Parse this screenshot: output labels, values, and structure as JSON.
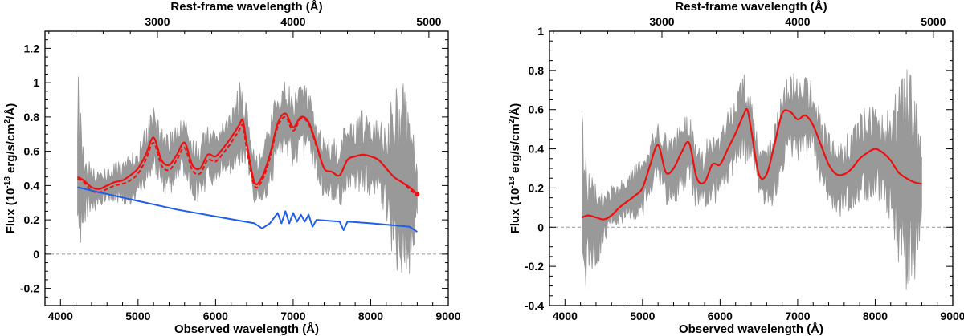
{
  "chart_data": [
    {
      "type": "line",
      "panel": "left",
      "xlabel": "Observed wavelength (Å)",
      "top_xlabel": "Rest-frame wavelength (Å)",
      "ylabel_parts": [
        "Flux (10",
        "-18",
        " erg/s/cm",
        "2",
        "/Å)"
      ],
      "xlim": [
        3800,
        9000
      ],
      "ylim": [
        -0.3,
        1.3
      ],
      "x_ticks": [
        4000,
        5000,
        6000,
        7000,
        8000,
        9000
      ],
      "x_tick_labels": [
        "4000",
        "5000",
        "6000",
        "7000",
        "8000",
        "9000"
      ],
      "y_ticks": [
        -0.2,
        0,
        0.2,
        0.4,
        0.6,
        0.8,
        1,
        1.2
      ],
      "y_tick_labels": [
        "-0.2",
        "0",
        "0.2",
        "0.4",
        "0.6",
        "0.8",
        "1",
        "1.2"
      ],
      "top_ticks": [
        3000,
        4000,
        5000
      ],
      "top_tick_labels": [
        "3000",
        "4000",
        "5000"
      ],
      "rest_frame_factor": 1.75,
      "zero_line": true,
      "series": [
        {
          "name": "observed-spectrum",
          "style": "noise-band",
          "color": "#999999",
          "x": [
            4220,
            4300,
            4400,
            4500,
            4600,
            4700,
            4800,
            4900,
            5000,
            5100,
            5200,
            5300,
            5400,
            5500,
            5600,
            5700,
            5800,
            5900,
            6000,
            6100,
            6200,
            6300,
            6400,
            6500,
            6600,
            6700,
            6800,
            6900,
            7000,
            7100,
            7200,
            7300,
            7400,
            7500,
            7600,
            7700,
            7800,
            7900,
            8000,
            8100,
            8200,
            8300,
            8400,
            8500,
            8600
          ],
          "y": [
            0.44,
            0.4,
            0.37,
            0.38,
            0.4,
            0.42,
            0.43,
            0.44,
            0.47,
            0.56,
            0.68,
            0.55,
            0.52,
            0.58,
            0.64,
            0.5,
            0.48,
            0.58,
            0.58,
            0.6,
            0.66,
            0.75,
            0.72,
            0.43,
            0.44,
            0.58,
            0.75,
            0.8,
            0.72,
            0.78,
            0.78,
            0.62,
            0.5,
            0.48,
            0.47,
            0.55,
            0.58,
            0.58,
            0.56,
            0.54,
            0.5,
            0.45,
            0.42,
            0.38,
            0.36
          ],
          "noise": [
            0.9,
            0.3,
            0.2,
            0.15,
            0.15,
            0.15,
            0.2,
            0.2,
            0.2,
            0.25,
            0.25,
            0.25,
            0.25,
            0.25,
            0.25,
            0.25,
            0.25,
            0.25,
            0.25,
            0.25,
            0.25,
            0.35,
            0.25,
            0.2,
            0.2,
            0.3,
            0.3,
            0.3,
            0.3,
            0.3,
            0.25,
            0.25,
            0.25,
            0.25,
            0.3,
            0.3,
            0.3,
            0.35,
            0.3,
            0.35,
            0.4,
            0.7,
            0.8,
            0.7,
            0.3
          ]
        },
        {
          "name": "total-model",
          "style": "solid",
          "color": "#ee1111",
          "x": [
            4220,
            4300,
            4400,
            4500,
            4600,
            4700,
            4800,
            4900,
            5000,
            5100,
            5200,
            5300,
            5400,
            5500,
            5600,
            5700,
            5800,
            5900,
            6000,
            6100,
            6200,
            6300,
            6350,
            6400,
            6500,
            6600,
            6700,
            6800,
            6900,
            7000,
            7100,
            7200,
            7300,
            7400,
            7500,
            7600,
            7700,
            7800,
            7900,
            8000,
            8100,
            8200,
            8300,
            8400,
            8500,
            8600
          ],
          "y": [
            0.45,
            0.43,
            0.39,
            0.38,
            0.4,
            0.42,
            0.43,
            0.46,
            0.5,
            0.58,
            0.68,
            0.55,
            0.52,
            0.58,
            0.65,
            0.52,
            0.5,
            0.58,
            0.57,
            0.62,
            0.68,
            0.75,
            0.78,
            0.65,
            0.42,
            0.45,
            0.58,
            0.76,
            0.82,
            0.74,
            0.8,
            0.77,
            0.64,
            0.5,
            0.48,
            0.46,
            0.55,
            0.57,
            0.58,
            0.57,
            0.55,
            0.5,
            0.45,
            0.42,
            0.39,
            0.35
          ]
        },
        {
          "name": "galaxy-model",
          "style": "dashed",
          "color": "#ee1111",
          "x": [
            4220,
            4300,
            4400,
            4500,
            4600,
            4700,
            4800,
            4900,
            5000,
            5100,
            5200,
            5300,
            5400,
            5500,
            5600,
            5700,
            5800,
            5900,
            6000,
            6100,
            6200,
            6300,
            6350,
            6400,
            6500,
            6600,
            6700,
            6800,
            6900,
            7000,
            7100,
            7200,
            7300,
            7400,
            7500,
            7600,
            7700,
            7800,
            7900,
            8000,
            8100,
            8200,
            8300,
            8400,
            8500,
            8600
          ],
          "y": [
            0.44,
            0.42,
            0.37,
            0.36,
            0.38,
            0.4,
            0.41,
            0.43,
            0.47,
            0.55,
            0.65,
            0.52,
            0.49,
            0.55,
            0.62,
            0.49,
            0.47,
            0.55,
            0.54,
            0.59,
            0.65,
            0.72,
            0.75,
            0.62,
            0.4,
            0.43,
            0.56,
            0.74,
            0.8,
            0.72,
            0.79,
            0.76,
            0.63,
            0.5,
            0.48,
            0.46,
            0.55,
            0.57,
            0.58,
            0.57,
            0.55,
            0.5,
            0.45,
            0.42,
            0.38,
            0.34
          ]
        },
        {
          "name": "stellar-continuum",
          "style": "solid",
          "color": "#1e5ee8",
          "x": [
            4220,
            4500,
            5000,
            5500,
            6000,
            6500,
            6600,
            6700,
            6800,
            6850,
            6900,
            6950,
            7000,
            7050,
            7100,
            7150,
            7200,
            7250,
            7300,
            7600,
            7650,
            7700,
            8000,
            8500,
            8600
          ],
          "y": [
            0.39,
            0.36,
            0.31,
            0.26,
            0.22,
            0.18,
            0.15,
            0.18,
            0.24,
            0.18,
            0.25,
            0.18,
            0.24,
            0.19,
            0.23,
            0.19,
            0.23,
            0.16,
            0.2,
            0.19,
            0.14,
            0.19,
            0.18,
            0.16,
            0.13
          ]
        }
      ]
    },
    {
      "type": "line",
      "panel": "right",
      "xlabel": "Observed wavelength (Å)",
      "top_xlabel": "Rest-frame wavelength (Å)",
      "ylabel_parts": [
        "Flux (10",
        "-18",
        " erg/s/cm",
        "2",
        "/Å)"
      ],
      "xlim": [
        3800,
        9000
      ],
      "ylim": [
        -0.4,
        1.0
      ],
      "x_ticks": [
        4000,
        5000,
        6000,
        7000,
        8000,
        9000
      ],
      "x_tick_labels": [
        "4000",
        "5000",
        "6000",
        "7000",
        "8000",
        "9000"
      ],
      "y_ticks": [
        -0.4,
        -0.2,
        0,
        0.2,
        0.4,
        0.6,
        0.8,
        1
      ],
      "y_tick_labels": [
        "-0.4",
        "-0.2",
        "0",
        "0.2",
        "0.4",
        "0.6",
        "0.8",
        "1"
      ],
      "top_ticks": [
        3000,
        4000,
        5000
      ],
      "top_tick_labels": [
        "3000",
        "4000",
        "5000"
      ],
      "rest_frame_factor": 1.75,
      "zero_line": true,
      "series": [
        {
          "name": "residual-spectrum",
          "style": "noise-band",
          "color": "#999999",
          "x": [
            4220,
            4300,
            4400,
            4500,
            4600,
            4700,
            4800,
            4900,
            5000,
            5100,
            5200,
            5300,
            5400,
            5500,
            5600,
            5700,
            5800,
            5900,
            6000,
            6100,
            6200,
            6300,
            6400,
            6500,
            6600,
            6700,
            6800,
            6900,
            7000,
            7100,
            7200,
            7300,
            7400,
            7500,
            7600,
            7700,
            7800,
            7900,
            8000,
            8100,
            8200,
            8300,
            8400,
            8500,
            8600
          ],
          "y": [
            0.05,
            0.02,
            0.0,
            0.05,
            0.1,
            0.12,
            0.15,
            0.18,
            0.2,
            0.3,
            0.4,
            0.3,
            0.3,
            0.35,
            0.4,
            0.25,
            0.25,
            0.3,
            0.32,
            0.4,
            0.48,
            0.58,
            0.5,
            0.3,
            0.25,
            0.3,
            0.5,
            0.58,
            0.55,
            0.55,
            0.55,
            0.4,
            0.3,
            0.25,
            0.25,
            0.28,
            0.35,
            0.38,
            0.38,
            0.35,
            0.3,
            0.25,
            0.25,
            0.22,
            0.22
          ],
          "noise": [
            0.8,
            0.35,
            0.3,
            0.2,
            0.15,
            0.15,
            0.15,
            0.2,
            0.2,
            0.2,
            0.2,
            0.25,
            0.25,
            0.25,
            0.25,
            0.25,
            0.25,
            0.25,
            0.25,
            0.25,
            0.25,
            0.35,
            0.25,
            0.2,
            0.2,
            0.3,
            0.3,
            0.3,
            0.3,
            0.3,
            0.25,
            0.25,
            0.25,
            0.25,
            0.3,
            0.3,
            0.3,
            0.35,
            0.3,
            0.35,
            0.4,
            0.7,
            0.8,
            0.7,
            0.3
          ]
        },
        {
          "name": "emission-model",
          "style": "solid",
          "color": "#ee1111",
          "x": [
            4220,
            4300,
            4400,
            4500,
            4600,
            4700,
            4800,
            4900,
            5000,
            5100,
            5200,
            5300,
            5400,
            5500,
            5600,
            5700,
            5800,
            5900,
            6000,
            6100,
            6200,
            6300,
            6350,
            6400,
            6500,
            6600,
            6700,
            6800,
            6900,
            7000,
            7100,
            7200,
            7300,
            7400,
            7500,
            7600,
            7700,
            7800,
            7900,
            8000,
            8100,
            8200,
            8300,
            8400,
            8500,
            8600
          ],
          "y": [
            0.05,
            0.06,
            0.05,
            0.04,
            0.06,
            0.1,
            0.13,
            0.16,
            0.2,
            0.32,
            0.42,
            0.28,
            0.3,
            0.38,
            0.43,
            0.25,
            0.23,
            0.32,
            0.32,
            0.4,
            0.48,
            0.57,
            0.6,
            0.5,
            0.27,
            0.27,
            0.42,
            0.58,
            0.59,
            0.55,
            0.57,
            0.52,
            0.42,
            0.32,
            0.27,
            0.27,
            0.3,
            0.35,
            0.38,
            0.4,
            0.38,
            0.34,
            0.28,
            0.25,
            0.23,
            0.22
          ]
        }
      ]
    }
  ]
}
